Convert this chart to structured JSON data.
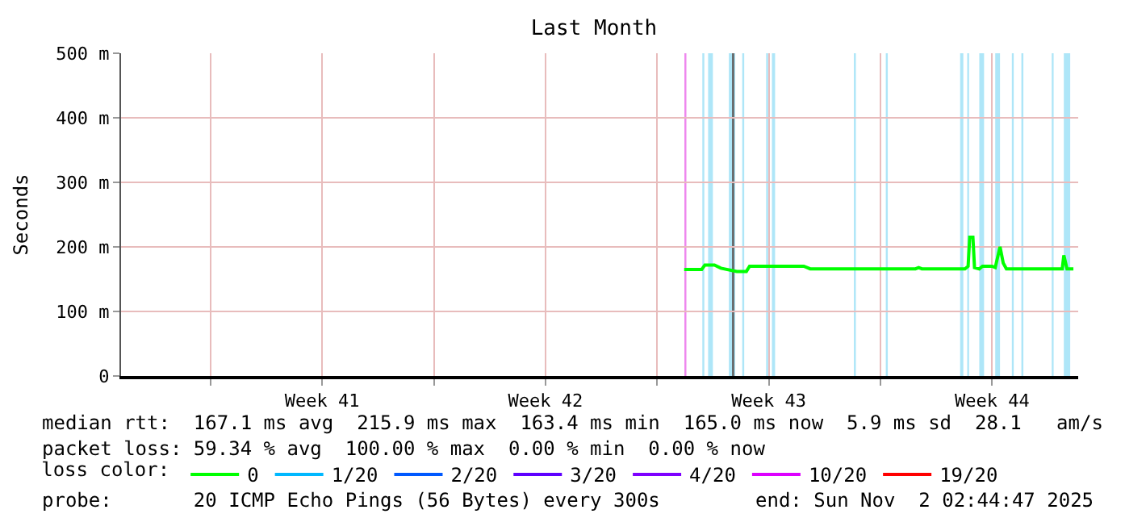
{
  "chart_data": {
    "type": "line",
    "title": "Last Month",
    "ylabel": "Seconds",
    "legend_title": "loss color:",
    "legend": "bottom",
    "grid": true,
    "xlim": [
      "2025-10-03T02:44",
      "2025-11-02T02:44"
    ],
    "xticks": [
      {
        "value": "2025-10-05T22:00",
        "label": null
      },
      {
        "value": "2025-10-09T10:00",
        "label": "Week 41"
      },
      {
        "value": "2025-10-12T22:00",
        "label": null
      },
      {
        "value": "2025-10-16T10:00",
        "label": "Week 42"
      },
      {
        "value": "2025-10-19T22:00",
        "label": null
      },
      {
        "value": "2025-10-23T10:00",
        "label": "Week 43"
      },
      {
        "value": "2025-10-26T22:00",
        "label": null
      },
      {
        "value": "2025-10-30T10:00",
        "label": "Week 44"
      }
    ],
    "ylim": [
      0,
      500
    ],
    "yticks": [
      0,
      {
        "value": 100,
        "label": "100 m"
      },
      {
        "value": 200,
        "label": "200 m"
      },
      {
        "value": 300,
        "label": "300 m"
      },
      {
        "value": 400,
        "label": "400 m"
      },
      {
        "value": 500,
        "label": "500 m"
      }
    ],
    "x": [
      "2025-10-20T18:20",
      "2025-10-21T07:32",
      "2025-10-21T09:56",
      "2025-10-21T17:08",
      "2025-10-21T21:56",
      "2025-10-22T09:56",
      "2025-10-22T17:08",
      "2025-10-22T19:32",
      "2025-10-24T12:20",
      "2025-10-24T17:08",
      "2025-10-28T00:20",
      "2025-10-28T02:44",
      "2025-10-28T05:08",
      "2025-10-29T13:32",
      "2025-10-29T15:56",
      "2025-10-29T17:08",
      "2025-10-29T19:32",
      "2025-10-29T20:44",
      "2025-10-30T00:20",
      "2025-10-30T02:44",
      "2025-10-30T09:56",
      "2025-10-30T12:20",
      "2025-10-30T15:56",
      "2025-10-30T18:20",
      "2025-10-30T20:44",
      "2025-11-01T14:44",
      "2025-11-01T15:56",
      "2025-11-01T18:20",
      "2025-11-01T23:08"
    ],
    "series": [
      {
        "name": "0",
        "color": "#00ff00",
        "values": [
          165,
          165,
          172,
          172,
          167,
          162,
          162,
          170,
          170,
          166,
          166,
          168,
          166,
          166,
          170,
          215,
          215,
          168,
          166,
          170,
          170,
          168,
          200,
          175,
          166,
          166,
          187,
          166,
          166
        ]
      },
      {
        "name": "1/20",
        "color": "#00b8ff",
        "values": [
          null,
          null,
          null,
          null,
          null,
          null,
          null,
          null,
          null,
          null,
          null,
          null,
          null,
          null,
          null,
          null,
          null,
          null,
          null,
          null,
          null,
          null,
          null,
          null,
          null,
          null,
          null,
          null,
          null
        ]
      },
      {
        "name": "2/20",
        "color": "#0059ff",
        "values": [
          null,
          null,
          null,
          null,
          null,
          null,
          null,
          null,
          null,
          null,
          null,
          null,
          null,
          null,
          null,
          null,
          null,
          null,
          null,
          null,
          null,
          null,
          null,
          null,
          null,
          null,
          null,
          null,
          null
        ]
      },
      {
        "name": "3/20",
        "color": "#5e00ff",
        "values": [
          null,
          null,
          null,
          null,
          null,
          null,
          null,
          null,
          null,
          null,
          null,
          null,
          null,
          null,
          null,
          null,
          null,
          null,
          null,
          null,
          null,
          null,
          null,
          null,
          null,
          null,
          null,
          null,
          null
        ]
      },
      {
        "name": "4/20",
        "color": "#7e00ff",
        "values": [
          null,
          null,
          null,
          null,
          null,
          null,
          null,
          null,
          null,
          null,
          null,
          null,
          null,
          null,
          null,
          null,
          null,
          null,
          null,
          null,
          null,
          null,
          null,
          null,
          null,
          null,
          null,
          null,
          null
        ]
      },
      {
        "name": "10/20",
        "color": "#dd00ff",
        "values": [
          null,
          null,
          null,
          null,
          null,
          null,
          null,
          null,
          null,
          null,
          null,
          null,
          null,
          null,
          null,
          null,
          null,
          null,
          null,
          null,
          null,
          null,
          null,
          null,
          null,
          null,
          null,
          null,
          null
        ]
      },
      {
        "name": "19/20",
        "color": "#ff0000",
        "values": [
          null,
          null,
          null,
          null,
          null,
          null,
          null,
          null,
          null,
          null,
          null,
          null,
          null,
          null,
          null,
          null,
          null,
          null,
          null,
          null,
          null,
          null,
          null,
          null,
          null,
          null,
          null,
          null,
          null
        ]
      }
    ],
    "bands": [
      {
        "axis": "x",
        "from": "2025-10-20T18:30",
        "to": "2025-10-20T20:00",
        "color": "#ee88ee"
      },
      {
        "axis": "x",
        "from": "2025-10-21T08:00",
        "to": "2025-10-21T09:30",
        "color": "#aee6f8"
      },
      {
        "axis": "x",
        "from": "2025-10-21T12:20",
        "to": "2025-10-21T15:56",
        "color": "#aee6f8"
      },
      {
        "axis": "x",
        "from": "2025-10-22T03:56",
        "to": "2025-10-22T08:44",
        "color": "#aee6f8"
      },
      {
        "axis": "x",
        "from": "2025-10-22T06:20",
        "to": "2025-10-22T08:00",
        "color": "#666666"
      },
      {
        "axis": "x",
        "from": "2025-10-22T14:00",
        "to": "2025-10-22T15:30",
        "color": "#aee6f8"
      },
      {
        "axis": "x",
        "from": "2025-10-23T08:00",
        "to": "2025-10-23T09:30",
        "color": "#aee6f8"
      },
      {
        "axis": "x",
        "from": "2025-10-23T12:20",
        "to": "2025-10-23T14:44",
        "color": "#aee6f8"
      },
      {
        "axis": "x",
        "from": "2025-10-26T02:00",
        "to": "2025-10-26T03:30",
        "color": "#aee6f8"
      },
      {
        "axis": "x",
        "from": "2025-10-27T02:00",
        "to": "2025-10-27T03:30",
        "color": "#aee6f8"
      },
      {
        "axis": "x",
        "from": "2025-10-29T09:56",
        "to": "2025-10-29T12:20",
        "color": "#aee6f8"
      },
      {
        "axis": "x",
        "from": "2025-10-29T15:15",
        "to": "2025-10-29T16:40",
        "color": "#aee6f8"
      },
      {
        "axis": "x",
        "from": "2025-10-30T00:20",
        "to": "2025-10-30T03:56",
        "color": "#aee6f8"
      },
      {
        "axis": "x",
        "from": "2025-10-30T12:20",
        "to": "2025-10-30T15:56",
        "color": "#aee6f8"
      },
      {
        "axis": "x",
        "from": "2025-10-31T00:50",
        "to": "2025-10-31T02:15",
        "color": "#aee6f8"
      },
      {
        "axis": "x",
        "from": "2025-10-31T08:00",
        "to": "2025-10-31T09:30",
        "color": "#aee6f8"
      },
      {
        "axis": "x",
        "from": "2025-11-01T06:50",
        "to": "2025-11-01T08:15",
        "color": "#aee6f8"
      },
      {
        "axis": "x",
        "from": "2025-11-01T15:56",
        "to": "2025-11-01T20:44",
        "color": "#aee6f8"
      }
    ],
    "annotations": [
      "median rtt:  167.1 ms avg  215.9 ms max  163.4 ms min  165.0 ms now  5.9 ms sd  28.1   am/s",
      "packet loss: 59.34 % avg  100.00 % max  0.00 % min  0.00 % now",
      "probe:       20 ICMP Echo Pings (56 Bytes) every 300s",
      "end: Sun Nov  2 02:44:47 2025"
    ]
  }
}
